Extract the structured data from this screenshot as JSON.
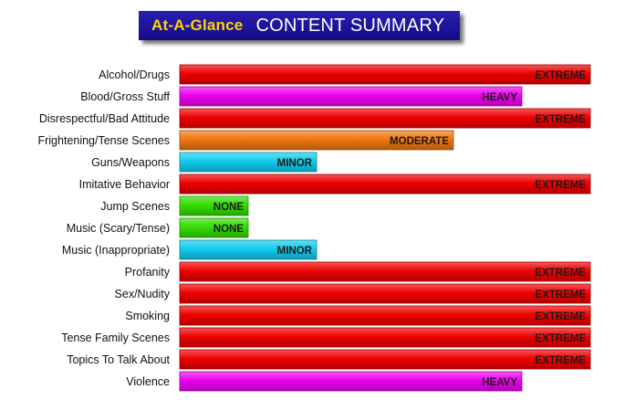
{
  "banner": {
    "brand": "At-A-Glance",
    "title": "CONTENT SUMMARY"
  },
  "chart_data": {
    "type": "bar",
    "orientation": "horizontal",
    "scale": [
      "NONE",
      "MINOR",
      "MODERATE",
      "HEAVY",
      "EXTREME"
    ],
    "scale_colors": {
      "NONE": "#33dd00",
      "MINOR": "#11ccee",
      "MODERATE": "#ee7711",
      "HEAVY": "#ee00ee",
      "EXTREME": "#ee0000"
    },
    "categories": [
      "Alcohol/Drugs",
      "Blood/Gross Stuff",
      "Disrespectful/Bad Attitude",
      "Frightening/Tense Scenes",
      "Guns/Weapons",
      "Imitative Behavior",
      "Jump Scenes",
      "Music (Scary/Tense)",
      "Music (Inappropriate)",
      "Profanity",
      "Sex/Nudity",
      "Smoking",
      "Tense Family Scenes",
      "Topics To Talk About",
      "Violence"
    ],
    "values": [
      "EXTREME",
      "HEAVY",
      "EXTREME",
      "MODERATE",
      "MINOR",
      "EXTREME",
      "NONE",
      "NONE",
      "MINOR",
      "EXTREME",
      "EXTREME",
      "EXTREME",
      "EXTREME",
      "EXTREME",
      "HEAVY"
    ]
  }
}
